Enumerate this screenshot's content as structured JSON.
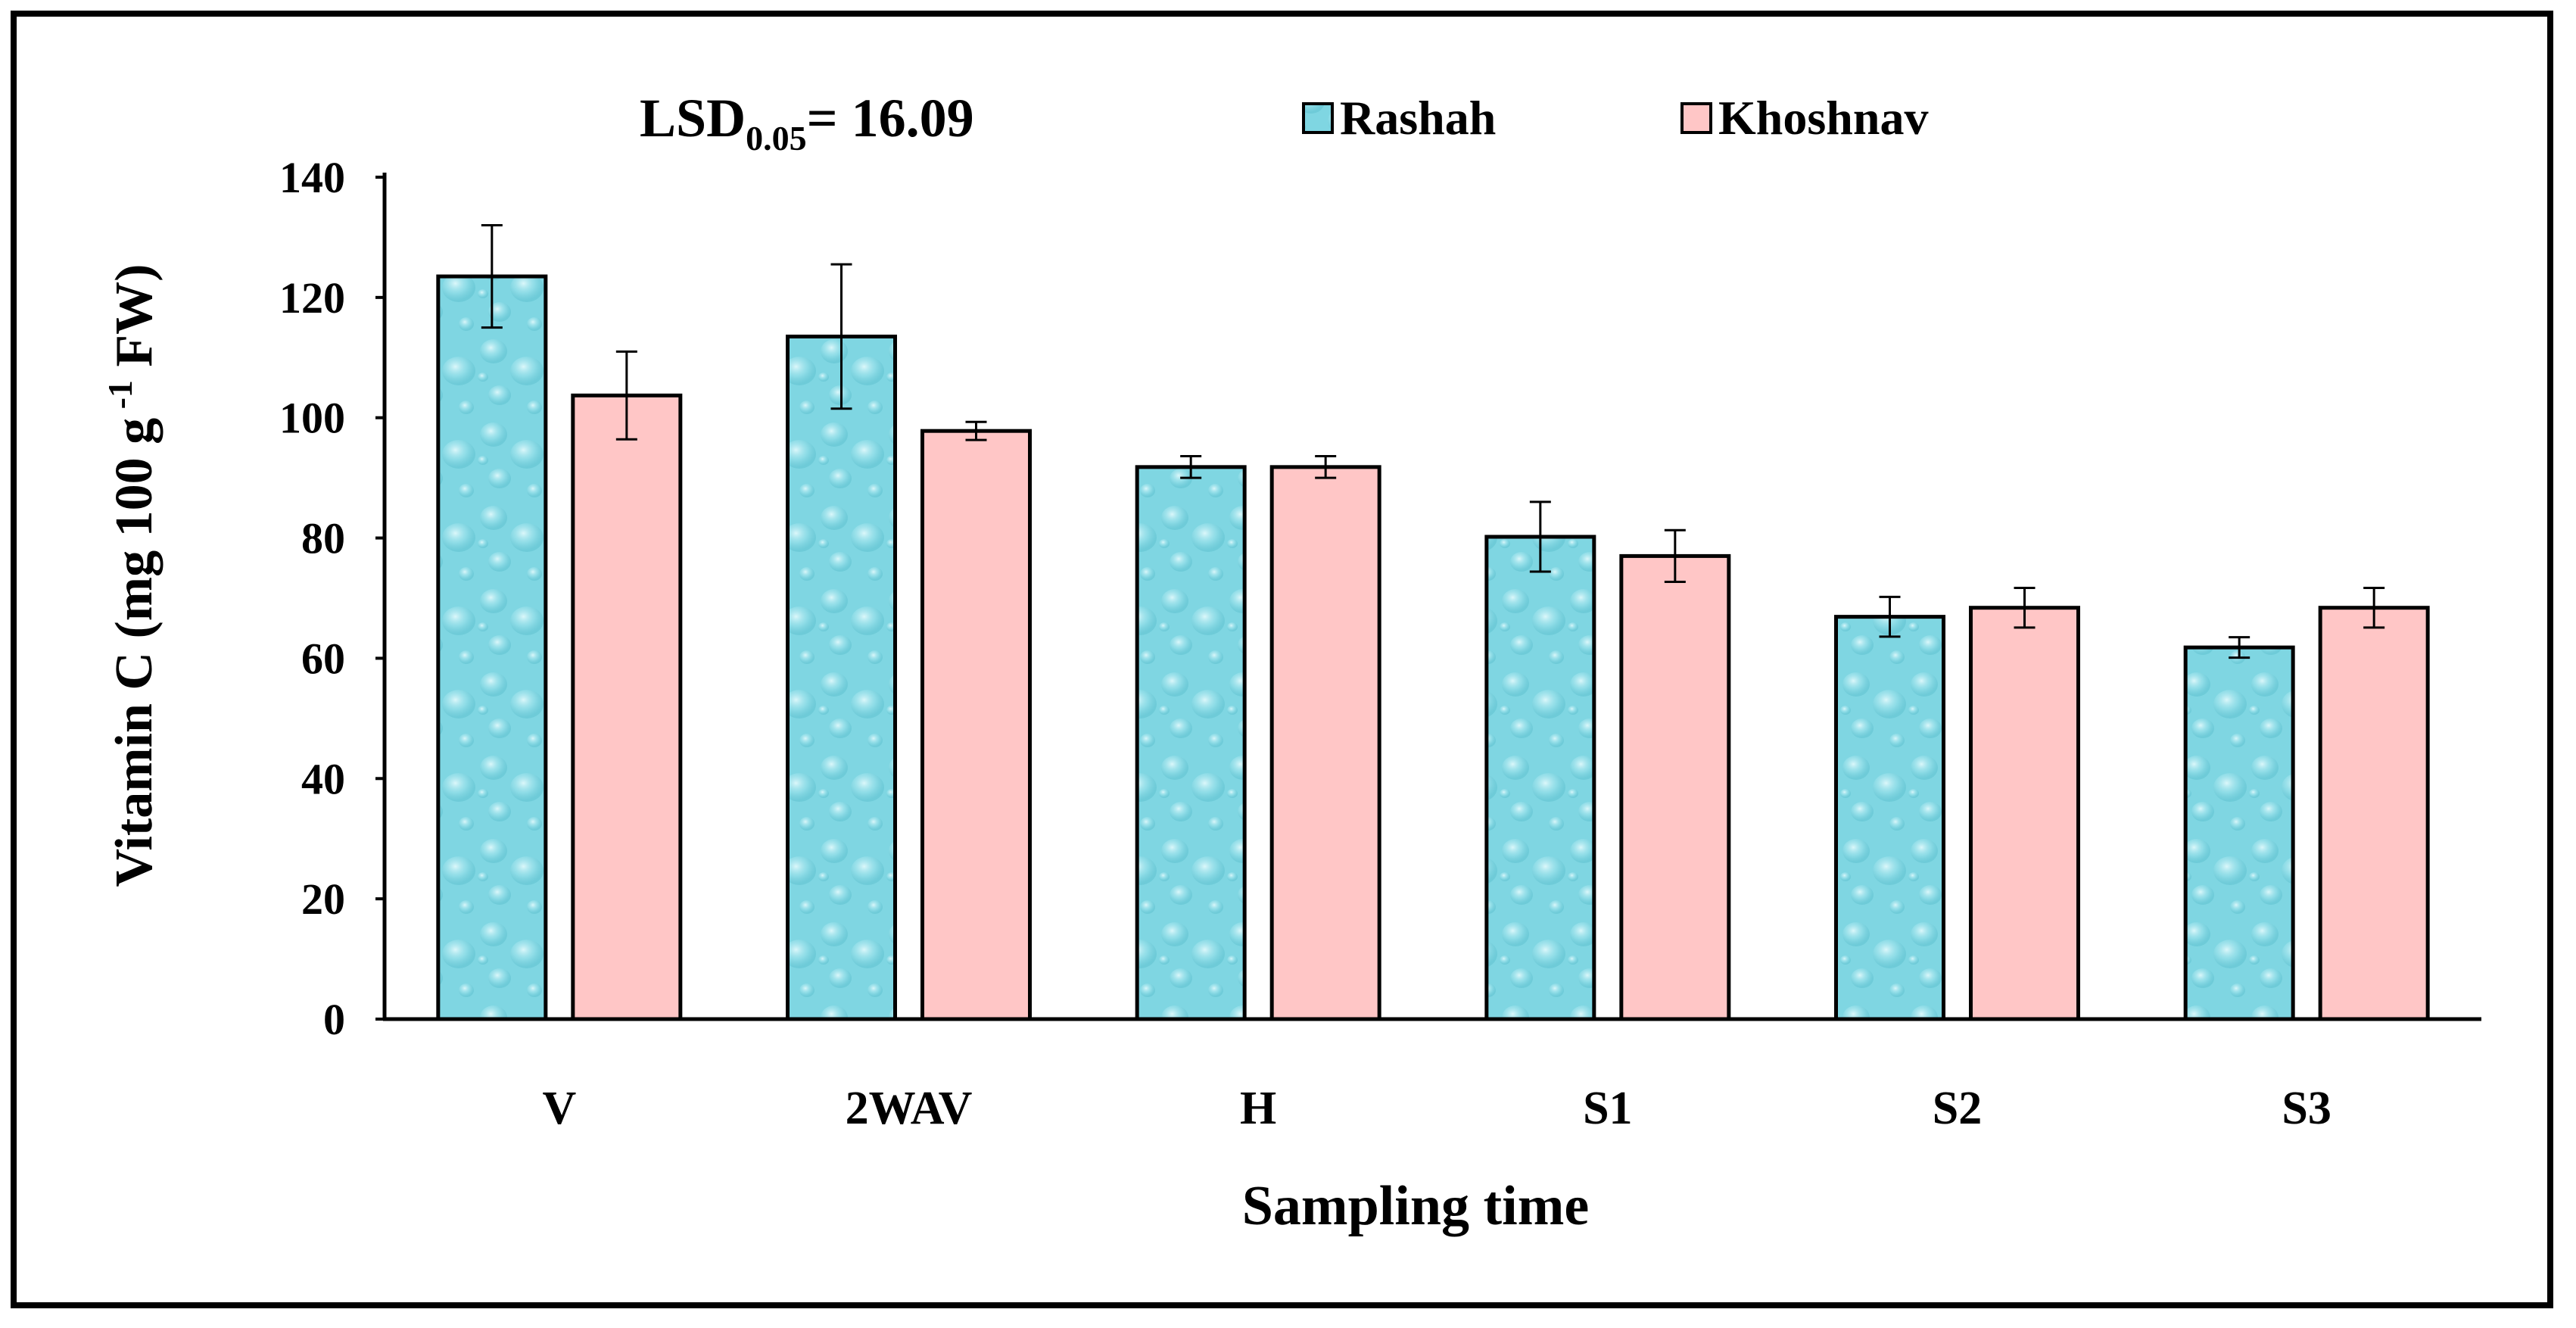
{
  "chart_data": {
    "type": "bar",
    "categories": [
      "V",
      "2WAV",
      "H",
      "S1",
      "S2",
      "S3"
    ],
    "series": [
      {
        "name": "Rashah",
        "values": [
          123.5,
          113.5,
          91.8,
          80.2,
          66.9,
          61.8
        ],
        "errors": [
          8.5,
          12.0,
          1.8,
          5.8,
          3.3,
          1.7
        ],
        "color": "#7fd6e2"
      },
      {
        "name": "Khoshnav",
        "values": [
          103.7,
          97.8,
          91.8,
          77.0,
          68.4,
          68.4
        ],
        "errors": [
          7.3,
          1.5,
          1.8,
          4.3,
          3.3,
          3.3
        ],
        "color": "#ffc6c6"
      }
    ],
    "title": "",
    "annotation": {
      "main": "LSD",
      "subscript": "0.05",
      "value": "= 16.09"
    },
    "xlabel": "Sampling time",
    "ylabel": {
      "main": "Vitamin C (mg 100 g",
      "superscript": " -1",
      "tail": " FW)"
    },
    "ylim": [
      0,
      140
    ],
    "yticks": [
      "0",
      "20",
      "40",
      "60",
      "80",
      "100",
      "120",
      "140"
    ],
    "grid": false,
    "legend_position": "top"
  }
}
